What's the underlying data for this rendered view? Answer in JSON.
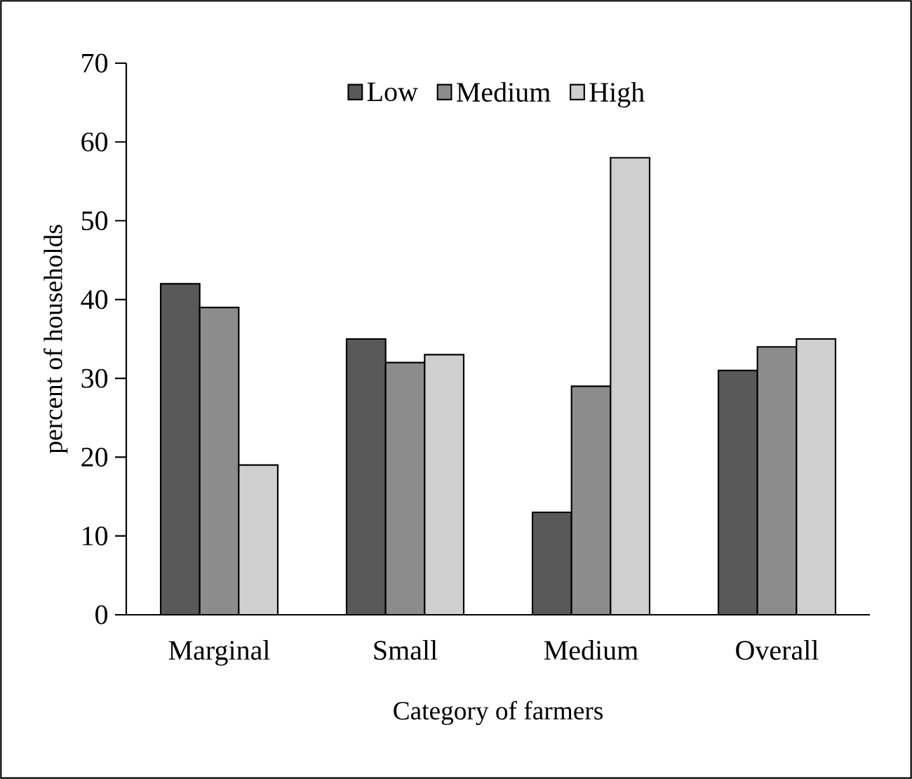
{
  "chart_data": {
    "type": "bar",
    "xlabel": "Category of farmers",
    "ylabel": "percent of households",
    "categories": [
      "Marginal",
      "Small",
      "Medium",
      "Overall"
    ],
    "series": [
      {
        "name": "Low",
        "color": "#595959",
        "values": [
          42,
          35,
          13,
          31
        ]
      },
      {
        "name": "Medium",
        "color": "#8c8c8c",
        "values": [
          39,
          32,
          29,
          34
        ]
      },
      {
        "name": "High",
        "color": "#cfcfcf",
        "values": [
          19,
          33,
          58,
          35
        ]
      }
    ],
    "ylim": [
      0,
      70
    ],
    "yticks": [
      0,
      10,
      20,
      30,
      40,
      50,
      60,
      70
    ],
    "grid": false,
    "legend": "top"
  }
}
